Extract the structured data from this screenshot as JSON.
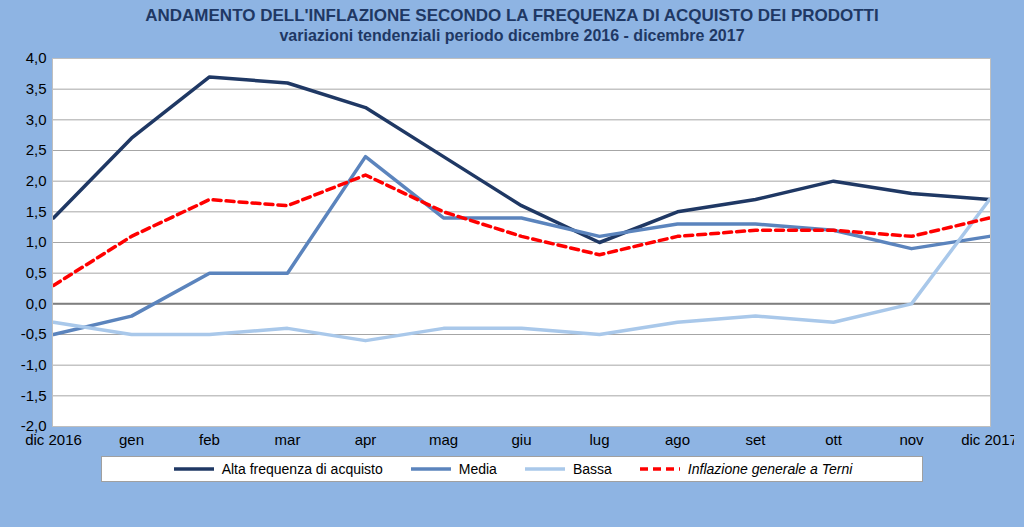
{
  "chart_data": {
    "type": "line",
    "title": "ANDAMENTO DELL'INFLAZIONE SECONDO LA FREQUENZA DI ACQUISTO DEI PRODOTTI",
    "subtitle": "variazioni tendenziali periodo dicembre 2016 - dicembre 2017",
    "categories": [
      "dic 2016",
      "gen",
      "feb",
      "mar",
      "apr",
      "mag",
      "giu",
      "lug",
      "ago",
      "set",
      "ott",
      "nov",
      "dic 2017"
    ],
    "series": [
      {
        "name": "Alta frequenza di acquisto",
        "color": "#1f3864",
        "line_style": "solid",
        "values": [
          1.4,
          2.7,
          3.7,
          3.6,
          3.2,
          2.4,
          1.6,
          1.0,
          1.5,
          1.7,
          2.0,
          1.8,
          1.7
        ]
      },
      {
        "name": "Media",
        "color": "#5b84bd",
        "line_style": "solid",
        "values": [
          -0.5,
          -0.2,
          0.5,
          0.5,
          2.4,
          1.4,
          1.4,
          1.1,
          1.3,
          1.3,
          1.2,
          0.9,
          1.1
        ]
      },
      {
        "name": "Bassa",
        "color": "#a9c8ea",
        "line_style": "solid",
        "values": [
          -0.3,
          -0.5,
          -0.5,
          -0.4,
          -0.6,
          -0.4,
          -0.4,
          -0.5,
          -0.3,
          -0.2,
          -0.3,
          0.0,
          1.7
        ]
      },
      {
        "name": "Inflazione generale a Terni",
        "color": "#ff0000",
        "line_style": "dashed",
        "values": [
          0.3,
          1.1,
          1.7,
          1.6,
          2.1,
          1.5,
          1.1,
          0.8,
          1.1,
          1.2,
          1.2,
          1.1,
          1.4
        ]
      }
    ],
    "ylim": [
      -2.0,
      4.0
    ],
    "yticks": [
      {
        "value": -2.0,
        "label": "-2,0"
      },
      {
        "value": -1.5,
        "label": "-1,5"
      },
      {
        "value": -1.0,
        "label": "-1,0"
      },
      {
        "value": -0.5,
        "label": "-0,5"
      },
      {
        "value": 0.0,
        "label": "0,0"
      },
      {
        "value": 0.5,
        "label": "0,5"
      },
      {
        "value": 1.0,
        "label": "1,0"
      },
      {
        "value": 1.5,
        "label": "1,5"
      },
      {
        "value": 2.0,
        "label": "2,0"
      },
      {
        "value": 2.5,
        "label": "2,5"
      },
      {
        "value": 3.0,
        "label": "3,0"
      },
      {
        "value": 3.5,
        "label": "3,5"
      },
      {
        "value": 4.0,
        "label": "4,0"
      }
    ],
    "grid": true,
    "legend": "bottom"
  }
}
